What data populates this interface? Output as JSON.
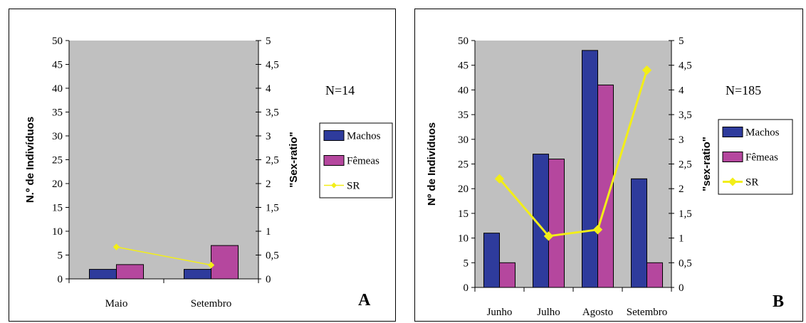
{
  "colors": {
    "machos": "#2e3b9c",
    "femeas": "#b5479e",
    "sr": "#f2ee18",
    "plot_bg": "#c0c0c0"
  },
  "chart_data": [
    {
      "type": "bar",
      "panel_letter": "A",
      "n_label": "N=14",
      "categories": [
        "Maio",
        "Setembro"
      ],
      "ylabel": "N.º de Indivíduos",
      "y2label": "\"Sex-ratio\"",
      "ylim": [
        0,
        50
      ],
      "y2lim": [
        0,
        5
      ],
      "yticks": [
        "0",
        "5",
        "10",
        "15",
        "20",
        "25",
        "30",
        "35",
        "40",
        "45",
        "50"
      ],
      "y2ticks": [
        "0",
        "0,5",
        "1",
        "1,5",
        "2",
        "2,5",
        "3",
        "3,5",
        "4",
        "4,5",
        "5"
      ],
      "series": [
        {
          "name": "Machos",
          "values": [
            2,
            2
          ]
        },
        {
          "name": "Fêmeas",
          "values": [
            3,
            7
          ]
        }
      ],
      "line_series": {
        "name": "SR",
        "values": [
          0.67,
          0.29
        ]
      },
      "legend_position": "right"
    },
    {
      "type": "bar",
      "panel_letter": "B",
      "n_label": "N=185",
      "categories": [
        "Junho",
        "Julho",
        "Agosto",
        "Setembro"
      ],
      "ylabel": "Nº de Indivíduos",
      "y2label": "\"sex-ratio\"",
      "ylim": [
        0,
        50
      ],
      "y2lim": [
        0,
        5
      ],
      "yticks": [
        "0",
        "5",
        "10",
        "15",
        "20",
        "25",
        "30",
        "35",
        "40",
        "45",
        "50"
      ],
      "y2ticks": [
        "0",
        "0,5",
        "1",
        "1,5",
        "2",
        "2,5",
        "3",
        "3,5",
        "4",
        "4,5",
        "5"
      ],
      "series": [
        {
          "name": "Machos",
          "values": [
            11,
            27,
            48,
            22
          ]
        },
        {
          "name": "Fêmeas",
          "values": [
            5,
            26,
            41,
            5
          ]
        }
      ],
      "line_series": {
        "name": "SR",
        "values": [
          2.2,
          1.04,
          1.17,
          4.4
        ]
      },
      "legend_position": "right"
    }
  ]
}
